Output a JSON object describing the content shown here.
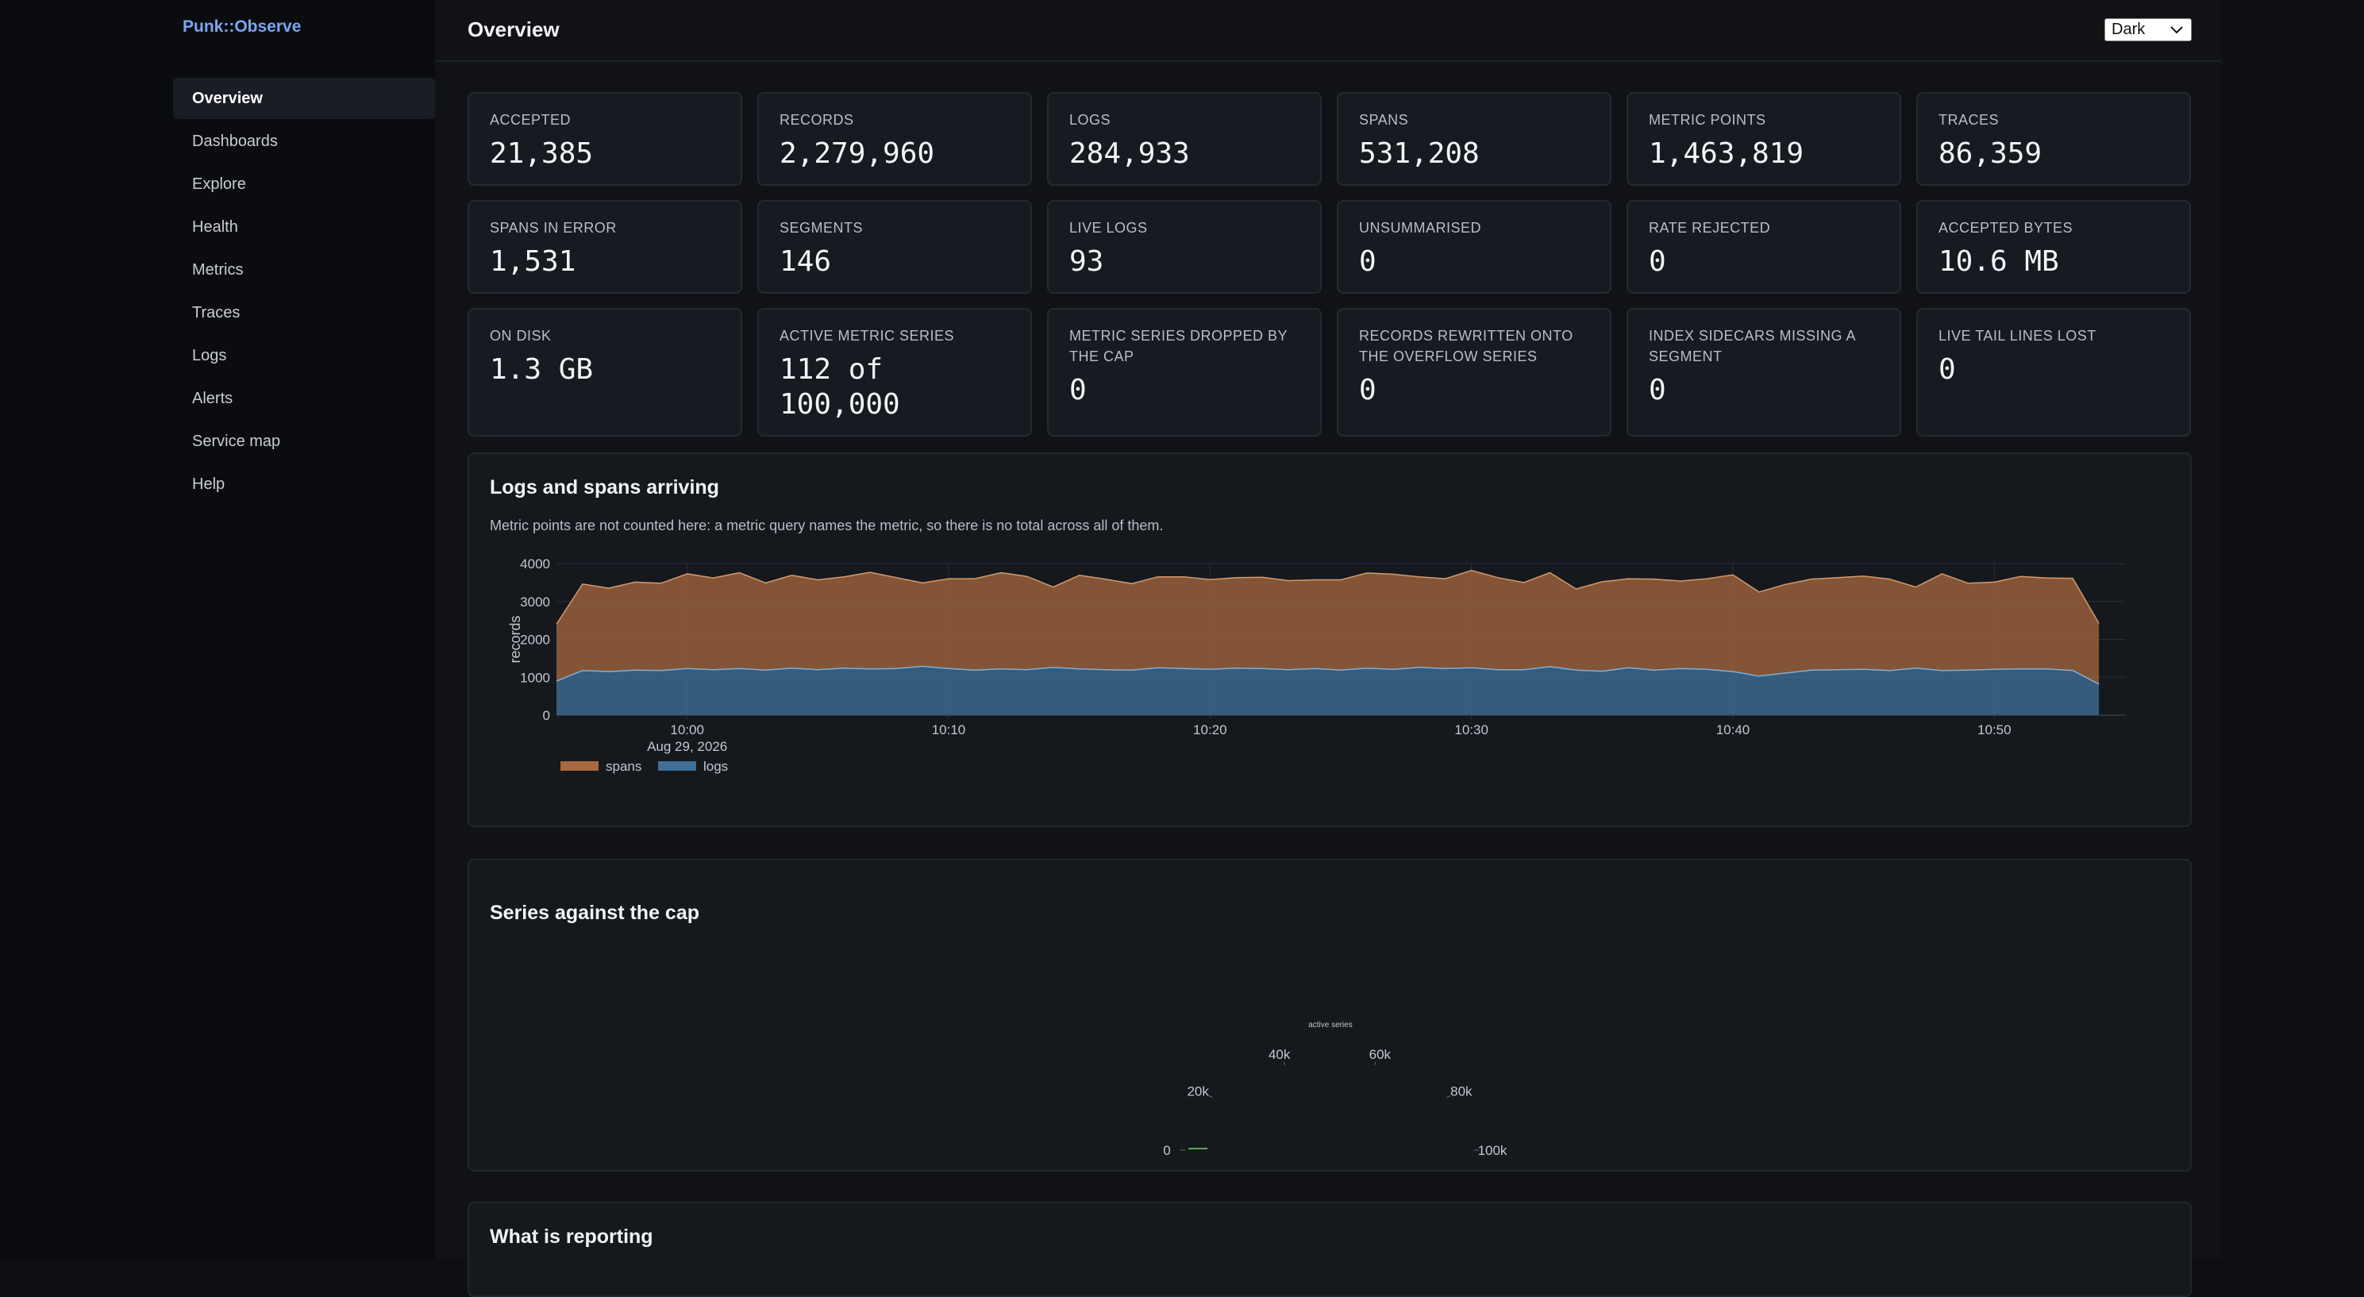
{
  "app": {
    "brand": "Punk::Observe"
  },
  "sidebar": {
    "items": [
      {
        "label": "Overview",
        "active": true
      },
      {
        "label": "Dashboards"
      },
      {
        "label": "Explore"
      },
      {
        "label": "Health"
      },
      {
        "label": "Metrics"
      },
      {
        "label": "Traces"
      },
      {
        "label": "Logs"
      },
      {
        "label": "Alerts"
      },
      {
        "label": "Service map"
      },
      {
        "label": "Help"
      }
    ]
  },
  "header": {
    "title": "Overview",
    "theme_value": "Dark"
  },
  "stats": [
    {
      "label": "ACCEPTED",
      "value": "21,385"
    },
    {
      "label": "RECORDS",
      "value": "2,279,960"
    },
    {
      "label": "LOGS",
      "value": "284,933"
    },
    {
      "label": "SPANS",
      "value": "531,208"
    },
    {
      "label": "METRIC POINTS",
      "value": "1,463,819"
    },
    {
      "label": "TRACES",
      "value": "86,359"
    },
    {
      "label": "SPANS IN ERROR",
      "value": "1,531"
    },
    {
      "label": "SEGMENTS",
      "value": "146"
    },
    {
      "label": "LIVE LOGS",
      "value": "93"
    },
    {
      "label": "UNSUMMARISED",
      "value": "0"
    },
    {
      "label": "RATE REJECTED",
      "value": "0"
    },
    {
      "label": "ACCEPTED BYTES",
      "value": "10.6 MB"
    },
    {
      "label": "ON DISK",
      "value": "1.3 GB"
    },
    {
      "label": "ACTIVE METRIC SERIES",
      "value": "112 of 100,000"
    },
    {
      "label": "METRIC SERIES DROPPED BY THE CAP",
      "value": "0"
    },
    {
      "label": "RECORDS REWRITTEN ONTO THE OVERFLOW SERIES",
      "value": "0"
    },
    {
      "label": "INDEX SIDECARS MISSING A SEGMENT",
      "value": "0"
    },
    {
      "label": "LIVE TAIL LINES LOST",
      "value": "0"
    }
  ],
  "arrival_panel": {
    "title": "Logs and spans arriving",
    "note": "Metric points are not counted here: a metric query names the metric, so there is no total across all of them."
  },
  "cap_panel": {
    "title": "Series against the cap"
  },
  "reporting_panel": {
    "title": "What is reporting"
  },
  "colors": {
    "spans": "#a8693f",
    "logs": "#3f6e96",
    "accent": "#7aa6f0",
    "gauge_fill": "#4caf50"
  },
  "chart_data": [
    {
      "type": "area",
      "stacked": true,
      "ylabel": "records",
      "ylim": [
        0,
        4000
      ],
      "yticks": [
        0,
        1000,
        2000,
        3000,
        4000
      ],
      "xlim": [
        "09:55",
        "10:55"
      ],
      "xticks": [
        "10:00",
        "10:10",
        "10:20",
        "10:30",
        "10:40",
        "10:50"
      ],
      "x_date_label": "Aug 29, 2026",
      "grid": true,
      "legend_position": "bottom-left",
      "x": [
        "09:55",
        "09:56",
        "09:57",
        "09:58",
        "09:59",
        "10:00",
        "10:01",
        "10:02",
        "10:03",
        "10:04",
        "10:05",
        "10:06",
        "10:07",
        "10:08",
        "10:09",
        "10:10",
        "10:11",
        "10:12",
        "10:13",
        "10:14",
        "10:15",
        "10:16",
        "10:17",
        "10:18",
        "10:19",
        "10:20",
        "10:21",
        "10:22",
        "10:23",
        "10:24",
        "10:25",
        "10:26",
        "10:27",
        "10:28",
        "10:29",
        "10:30",
        "10:31",
        "10:32",
        "10:33",
        "10:34",
        "10:35",
        "10:36",
        "10:37",
        "10:38",
        "10:39",
        "10:40",
        "10:41",
        "10:42",
        "10:43",
        "10:44",
        "10:45",
        "10:46",
        "10:47",
        "10:48",
        "10:49",
        "10:50",
        "10:51",
        "10:52",
        "10:53",
        "10:54"
      ],
      "series": [
        {
          "name": "logs",
          "values": [
            900,
            1180,
            1150,
            1190,
            1180,
            1230,
            1200,
            1230,
            1190,
            1240,
            1200,
            1240,
            1220,
            1230,
            1290,
            1230,
            1190,
            1220,
            1200,
            1260,
            1220,
            1200,
            1190,
            1250,
            1230,
            1210,
            1240,
            1230,
            1200,
            1230,
            1190,
            1240,
            1210,
            1260,
            1230,
            1250,
            1200,
            1200,
            1280,
            1190,
            1160,
            1250,
            1190,
            1230,
            1210,
            1150,
            1030,
            1110,
            1190,
            1200,
            1210,
            1180,
            1240,
            1180,
            1190,
            1210,
            1220,
            1220,
            1180,
            820
          ]
        },
        {
          "name": "spans",
          "values": [
            1500,
            2280,
            2200,
            2320,
            2300,
            2500,
            2420,
            2530,
            2300,
            2450,
            2370,
            2410,
            2550,
            2400,
            2200,
            2370,
            2410,
            2540,
            2460,
            2120,
            2470,
            2390,
            2280,
            2400,
            2420,
            2370,
            2390,
            2410,
            2350,
            2340,
            2380,
            2510,
            2510,
            2390,
            2370,
            2570,
            2430,
            2300,
            2480,
            2140,
            2360,
            2350,
            2400,
            2310,
            2390,
            2550,
            2220,
            2340,
            2400,
            2430,
            2460,
            2410,
            2140,
            2550,
            2290,
            2300,
            2440,
            2400,
            2430,
            1600
          ]
        }
      ]
    },
    {
      "type": "gauge",
      "title": "active series",
      "value": 112,
      "range": [
        0,
        100000
      ],
      "ticks": [
        "0",
        "20k",
        "40k",
        "60k",
        "80k",
        "100k"
      ]
    }
  ]
}
